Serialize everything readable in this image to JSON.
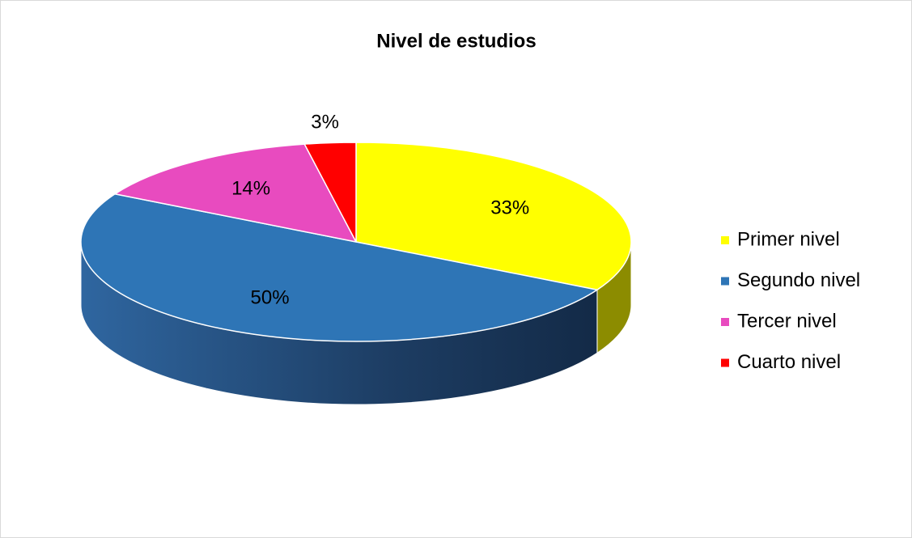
{
  "chart_data": {
    "type": "pie",
    "title": "Nivel de estudios",
    "categories": [
      "Primer nivel",
      "Segundo nivel",
      "Tercer nivel",
      "Cuarto nivel"
    ],
    "values": [
      33,
      50,
      14,
      3
    ],
    "value_labels": [
      "33%",
      "50%",
      "14%",
      "3%"
    ],
    "colors": [
      "#ffff00",
      "#2e75b6",
      "#e84bbf",
      "#ff0000"
    ],
    "legend": "right"
  }
}
